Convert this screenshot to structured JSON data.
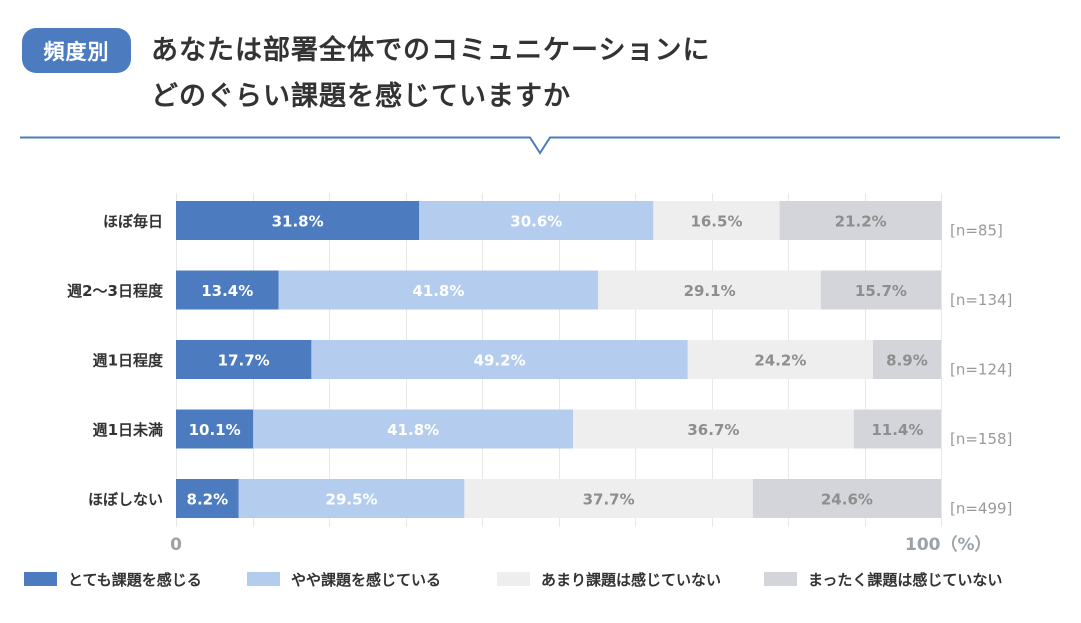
{
  "header": {
    "badge": "頻度別",
    "title_line1": "あなたは部署全体でのコミュニケーションに",
    "title_line2": "どのぐらい課題を感じていますか",
    "accent_color": "#4c7cbf"
  },
  "chart_data": {
    "type": "bar",
    "orientation": "horizontal",
    "stacked": true,
    "title": "あなたは部署全体でのコミュニケーションにどのぐらい課題を感じていますか",
    "categories": [
      "ほぼ毎日",
      "週2〜3日程度",
      "週1日程度",
      "週1日未満",
      "ほぼしない"
    ],
    "sample_sizes": [
      "[n=85]",
      "[n=134]",
      "[n=124]",
      "[n=158]",
      "[n=499]"
    ],
    "series": [
      {
        "name": "とても課題を感じる",
        "color": "#4c7cbf",
        "label_color": "#ffffff",
        "values": [
          31.8,
          13.4,
          17.7,
          10.1,
          8.2
        ]
      },
      {
        "name": "やや課題を感じている",
        "color": "#b4cdee",
        "label_color": "#ffffff",
        "values": [
          30.6,
          41.8,
          49.2,
          41.8,
          29.5
        ]
      },
      {
        "name": "あまり課題は感じていない",
        "color": "#eeeeee",
        "label_color": "#8e8e8e",
        "values": [
          16.5,
          29.1,
          24.2,
          36.7,
          37.7
        ]
      },
      {
        "name": "まったく課題は感じていない",
        "color": "#d4d5da",
        "label_color": "#8e8e8e",
        "values": [
          21.2,
          15.7,
          8.9,
          11.4,
          24.6
        ]
      }
    ],
    "value_format": "{v}%",
    "xlim": [
      0,
      100
    ],
    "x_tick_start": "0",
    "x_tick_end": "100",
    "x_unit": "（%）",
    "grid": true,
    "grid_step": 10,
    "legend": "bottom"
  }
}
